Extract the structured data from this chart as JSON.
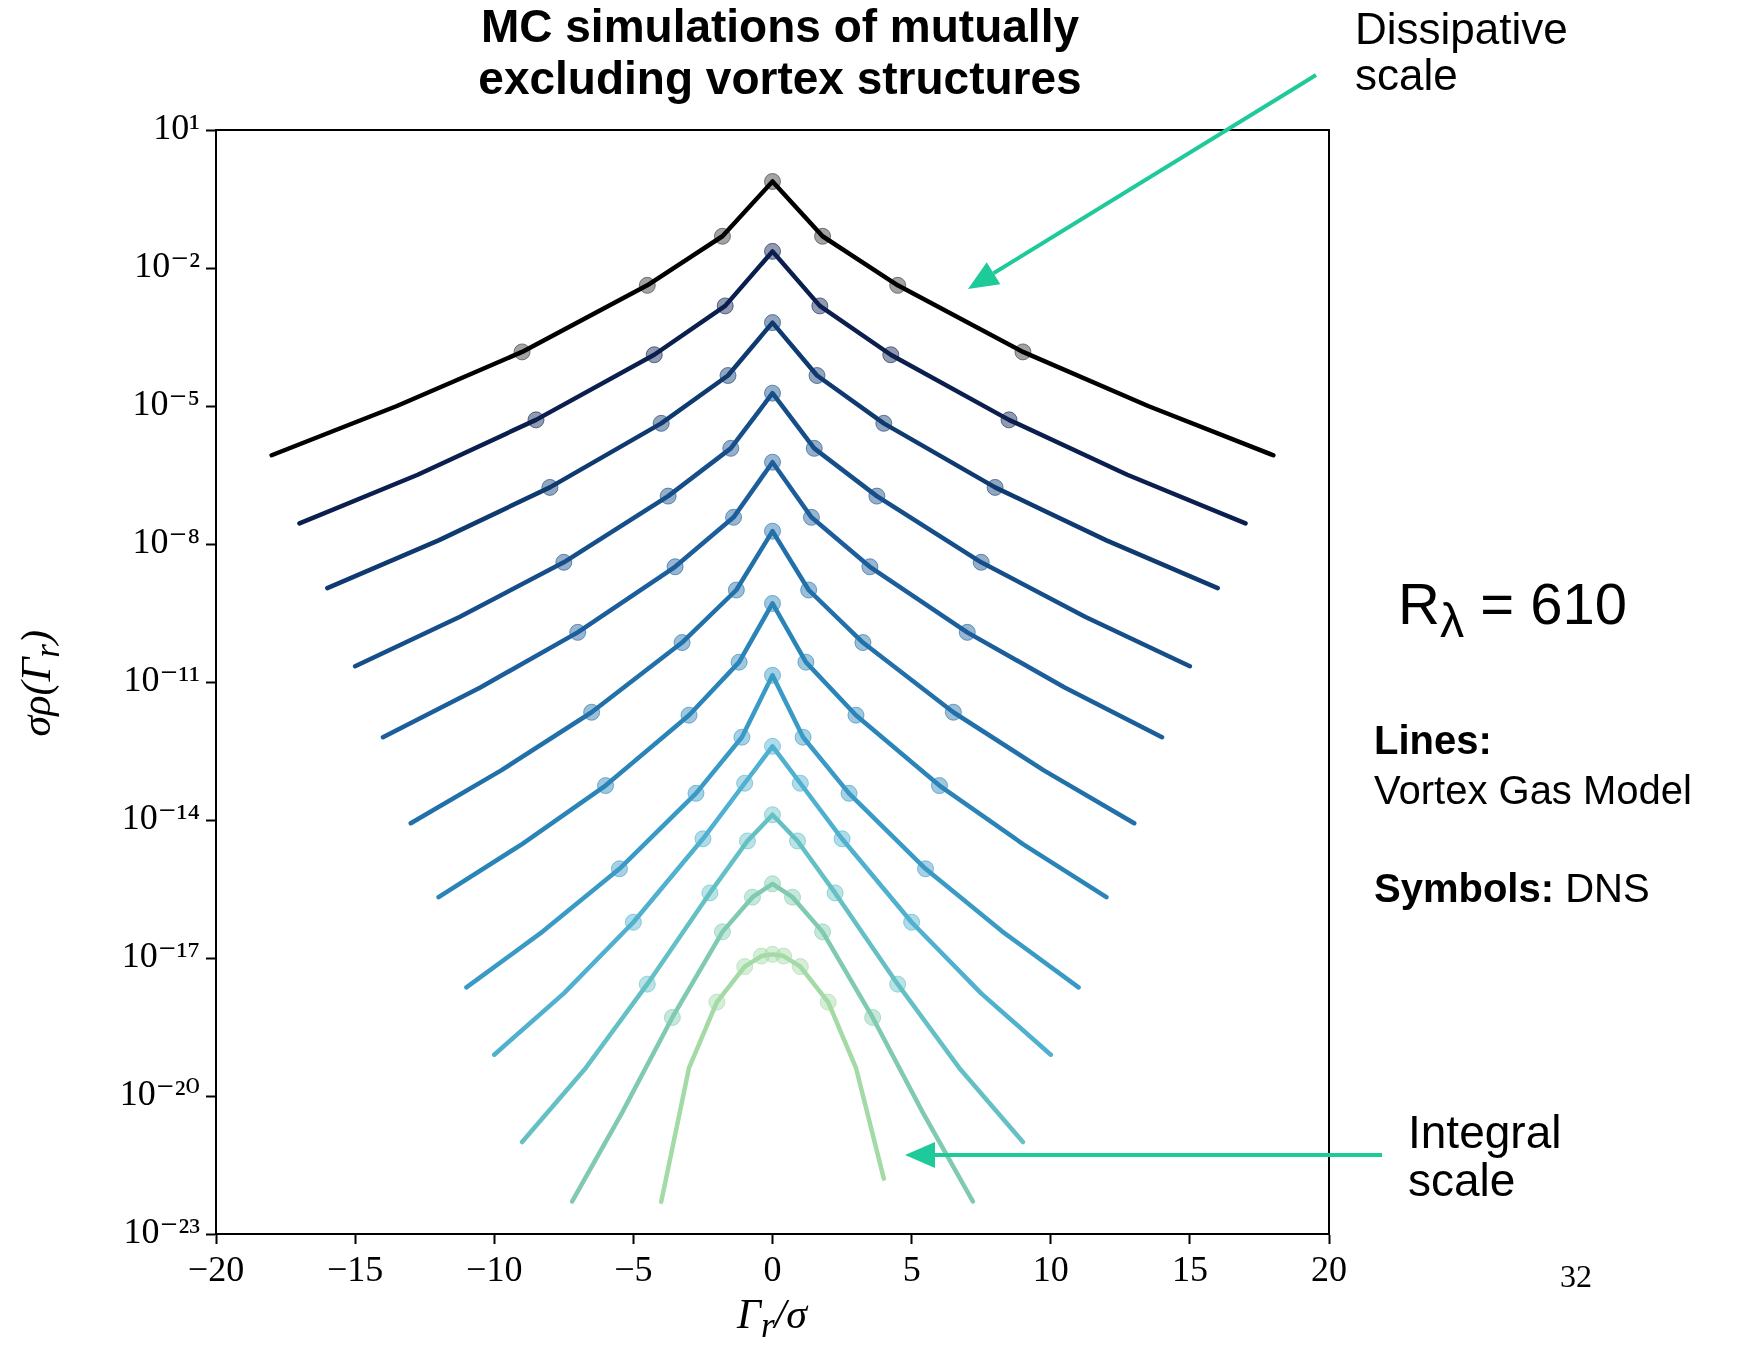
{
  "chart_data": {
    "type": "line",
    "title": "MC simulations of mutually excluding vortex structures",
    "xlabel": "Γ$_{r}$/σ",
    "ylabel": "σρ(Γ$_{r}$)",
    "xlim": [
      -20,
      20
    ],
    "xticks": [
      {
        "value": -20,
        "label": "−20"
      },
      {
        "value": -15,
        "label": "−15"
      },
      {
        "value": -10,
        "label": "−10"
      },
      {
        "value": -5,
        "label": "−5"
      },
      0,
      5,
      10,
      15,
      20
    ],
    "ylim": [
      1e-23,
      10
    ],
    "yticks": [
      {
        "value": 10,
        "label": "10¹"
      },
      {
        "value": 0.01,
        "label": "10⁻²"
      },
      {
        "value": 1e-05,
        "label": "10⁻⁵"
      },
      {
        "value": 1e-08,
        "label": "10⁻⁸"
      },
      {
        "value": 1e-11,
        "label": "10⁻¹¹"
      },
      {
        "value": 1e-14,
        "label": "10⁻¹⁴"
      },
      {
        "value": 1e-17,
        "label": "10⁻¹⁷"
      },
      {
        "value": 1e-20,
        "label": "10⁻²⁰"
      },
      {
        "value": 1e-23,
        "label": "10⁻²³"
      }
    ],
    "log": "y",
    "grid": false,
    "legend": false,
    "marker": "circle",
    "line_style": "solid",
    "annotations": [
      "Dissipative scale",
      "Integral scale",
      "R$_{λ}$ = 610",
      "Lines:",
      "Vortex Gas Model",
      "Symbols:",
      "DNS",
      "32"
    ],
    "series": [
      {
        "marker": "none",
        "color": "#000000",
        "x": [
          -18,
          -13.5,
          -9,
          -4.5,
          -1.8,
          0,
          1.8,
          4.5,
          9,
          13.5,
          18
        ],
        "values": [
          8.5e-07,
          1e-05,
          0.00015,
          0.0042,
          0.049,
          0.76,
          0.049,
          0.0042,
          0.00015,
          1e-05,
          8.5e-07
        ]
      },
      {
        "type": "scatter",
        "color": "#333333",
        "x": [
          -9,
          -4.5,
          -1.8,
          0,
          1.8,
          4.5,
          9
        ],
        "values": [
          0.00015,
          0.0042,
          0.049,
          0.76,
          0.049,
          0.0042,
          0.00015
        ]
      },
      {
        "marker": "none",
        "color": "#0b1f4f",
        "x": [
          -17,
          -12.75,
          -8.5,
          -4.25,
          -1.7,
          0,
          1.7,
          4.25,
          8.5,
          12.75,
          17
        ],
        "values": [
          2.8e-08,
          3.2e-07,
          5e-06,
          0.00013,
          0.0015,
          0.023,
          0.0015,
          0.00013,
          5e-06,
          3.2e-07,
          2.8e-08
        ]
      },
      {
        "type": "scatter",
        "color": "#0b1f4f",
        "x": [
          -8.5,
          -4.25,
          -1.7,
          0,
          1.7,
          4.25,
          8.5
        ],
        "values": [
          5e-06,
          0.00013,
          0.0015,
          0.023,
          0.0015,
          0.00013,
          5e-06
        ]
      },
      {
        "marker": "none",
        "color": "#0e3a70",
        "x": [
          -16,
          -12,
          -8,
          -4,
          -1.6,
          0,
          1.6,
          4,
          8,
          12,
          16
        ],
        "values": [
          1.1e-09,
          1.2e-08,
          1.7e-07,
          4.2e-06,
          4.6e-05,
          0.00065,
          4.6e-05,
          4.2e-06,
          1.7e-07,
          1.2e-08,
          1.1e-09
        ]
      },
      {
        "type": "scatter",
        "color": "#0e3a70",
        "x": [
          -8,
          -4,
          -1.6,
          0,
          1.6,
          4,
          8
        ],
        "values": [
          1.7e-07,
          4.2e-06,
          4.6e-05,
          0.00065,
          4.6e-05,
          4.2e-06,
          1.7e-07
        ]
      },
      {
        "marker": "none",
        "color": "#154e89",
        "x": [
          -15,
          -11.25,
          -7.5,
          -3.75,
          -1.5,
          0,
          1.5,
          3.75,
          7.5,
          11.25,
          15
        ],
        "values": [
          2.2e-11,
          2.6e-10,
          4e-09,
          1.1e-07,
          1.2e-06,
          1.9e-05,
          1.2e-06,
          1.1e-07,
          4e-09,
          2.6e-10,
          2.2e-11
        ]
      },
      {
        "type": "scatter",
        "color": "#154e89",
        "x": [
          -7.5,
          -3.75,
          -1.5,
          0,
          1.5,
          3.75,
          7.5
        ],
        "values": [
          4e-09,
          1.1e-07,
          1.2e-06,
          1.9e-05,
          1.2e-06,
          1.1e-07,
          4e-09
        ]
      },
      {
        "marker": "none",
        "color": "#1b5e9b",
        "x": [
          -14,
          -10.5,
          -7,
          -3.5,
          -1.4,
          0,
          1.4,
          3.5,
          7,
          10.5,
          14
        ],
        "values": [
          6.3e-13,
          7.6e-12,
          1.2e-10,
          3.2e-09,
          3.8e-08,
          6e-07,
          3.8e-08,
          3.2e-09,
          1.2e-10,
          7.6e-12,
          6.3e-13
        ]
      },
      {
        "type": "scatter",
        "color": "#1b5e9b",
        "x": [
          -7,
          -3.5,
          -1.4,
          0,
          1.4,
          3.5,
          7
        ],
        "values": [
          1.2e-10,
          3.2e-09,
          3.8e-08,
          6e-07,
          3.8e-08,
          3.2e-09,
          1.2e-10
        ]
      },
      {
        "marker": "none",
        "color": "#2270a9",
        "x": [
          -13,
          -9.75,
          -6.5,
          -3.25,
          -1.3,
          0,
          1.3,
          3.25,
          6.5,
          9.75,
          13
        ],
        "values": [
          8.5e-15,
          1.2e-13,
          2.2e-12,
          7.2e-11,
          1e-09,
          1.9e-08,
          1e-09,
          7.2e-11,
          2.2e-12,
          1.2e-13,
          8.5e-15
        ]
      },
      {
        "type": "scatter",
        "color": "#2270a9",
        "x": [
          -6.5,
          -3.25,
          -1.3,
          0,
          1.3,
          3.25,
          6.5
        ],
        "values": [
          2.2e-12,
          7.2e-11,
          1e-09,
          1.9e-08,
          1e-09,
          7.2e-11,
          2.2e-12
        ]
      },
      {
        "marker": "none",
        "color": "#2a84b8",
        "x": [
          -12,
          -9,
          -6,
          -3,
          -1.2,
          0,
          1.2,
          3,
          6,
          9,
          12
        ],
        "values": [
          2.1e-16,
          3e-15,
          5.6e-14,
          1.9e-12,
          2.7e-11,
          5.1e-10,
          2.7e-11,
          1.9e-12,
          5.6e-14,
          3e-15,
          2.1e-16
        ]
      },
      {
        "type": "scatter",
        "color": "#2a84b8",
        "x": [
          -6,
          -3,
          -1.2,
          0,
          1.2,
          3,
          6
        ],
        "values": [
          5.6e-14,
          1.9e-12,
          2.7e-11,
          5.1e-10,
          2.7e-11,
          1.9e-12,
          5.6e-14
        ]
      },
      {
        "marker": "none",
        "color": "#3a9ac6",
        "x": [
          -11,
          -8.25,
          -5.5,
          -2.75,
          -1.1,
          0,
          1.1,
          2.75,
          5.5,
          8.25,
          11
        ],
        "values": [
          2.3e-18,
          3.8e-17,
          8.7e-16,
          3.8e-14,
          6.3e-13,
          1.4e-11,
          6.3e-13,
          3.8e-14,
          8.7e-16,
          3.8e-17,
          2.3e-18
        ]
      },
      {
        "type": "scatter",
        "color": "#3a9ac6",
        "x": [
          -5.5,
          -2.75,
          -1.1,
          0,
          1.1,
          2.75,
          5.5
        ],
        "values": [
          8.7e-16,
          3.8e-14,
          6.3e-13,
          1.4e-11,
          6.3e-13,
          3.8e-14,
          8.7e-16
        ]
      },
      {
        "marker": "none",
        "color": "#4fb0cf",
        "x": [
          -10,
          -7.5,
          -5,
          -2.5,
          -1,
          0,
          1,
          2.5,
          5,
          7.5,
          10
        ],
        "values": [
          7.9e-20,
          1.7e-18,
          6e-17,
          3.9e-15,
          6.3e-14,
          4e-13,
          6.3e-14,
          3.9e-15,
          6e-17,
          1.7e-18,
          7.9e-20
        ]
      },
      {
        "type": "scatter",
        "color": "#4fb0cf",
        "x": [
          -5,
          -2.5,
          -1,
          0,
          1,
          2.5,
          5
        ],
        "values": [
          6e-17,
          3.9e-15,
          6.3e-14,
          4e-13,
          6.3e-14,
          3.9e-15,
          6e-17
        ]
      },
      {
        "marker": "none",
        "color": "#64c0c4",
        "x": [
          -9,
          -6.75,
          -4.5,
          -2.25,
          -0.9,
          0,
          0.9,
          2.25,
          4.5,
          6.75,
          9
        ],
        "values": [
          1e-21,
          3.8e-20,
          2.7e-18,
          2.6e-16,
          3.5e-15,
          1.3e-14,
          3.5e-15,
          2.6e-16,
          2.7e-18,
          3.8e-20,
          1e-21
        ]
      },
      {
        "type": "scatter",
        "color": "#64c0c4",
        "x": [
          -4.5,
          -2.25,
          -0.9,
          0,
          0.9,
          2.25,
          4.5
        ],
        "values": [
          2.7e-18,
          2.6e-16,
          3.5e-15,
          1.3e-14,
          3.5e-15,
          2.6e-16,
          2.7e-18
        ]
      },
      {
        "marker": "none",
        "color": "#80cbb0",
        "x": [
          -7.2,
          -5.4,
          -3.6,
          -1.8,
          -0.72,
          0,
          0.72,
          1.8,
          3.6,
          5.4,
          7.2
        ],
        "values": [
          5.1e-23,
          4.4e-21,
          5.1e-19,
          3.7e-17,
          2.1e-16,
          4.1e-16,
          2.1e-16,
          3.7e-17,
          5.1e-19,
          4.4e-21,
          5.1e-23
        ]
      },
      {
        "type": "scatter",
        "color": "#80cbb0",
        "x": [
          -3.6,
          -1.8,
          -0.72,
          0,
          0.72,
          1.8,
          3.6
        ],
        "values": [
          5.1e-19,
          3.7e-17,
          2.1e-16,
          4.1e-16,
          2.1e-16,
          3.7e-17,
          5.1e-19
        ]
      },
      {
        "marker": "none",
        "color": "#a3daa6",
        "x": [
          -4,
          -3,
          -2,
          -1,
          -0.4,
          0,
          0.4,
          1,
          2,
          3,
          4
        ],
        "values": [
          5e-23,
          4.1e-20,
          1.1e-18,
          6.5e-18,
          1.1e-17,
          1.2e-17,
          1.1e-17,
          6.5e-18,
          1.1e-18,
          4.1e-20,
          1.6e-22
        ]
      },
      {
        "type": "scatter",
        "color": "#a3daa6",
        "x": [
          -2,
          -1,
          -0.4,
          0,
          0.4,
          1,
          2
        ],
        "values": [
          1.1e-18,
          6.5e-18,
          1.1e-17,
          1.2e-17,
          1.1e-17,
          6.5e-18,
          1.1e-18
        ]
      }
    ]
  }
}
